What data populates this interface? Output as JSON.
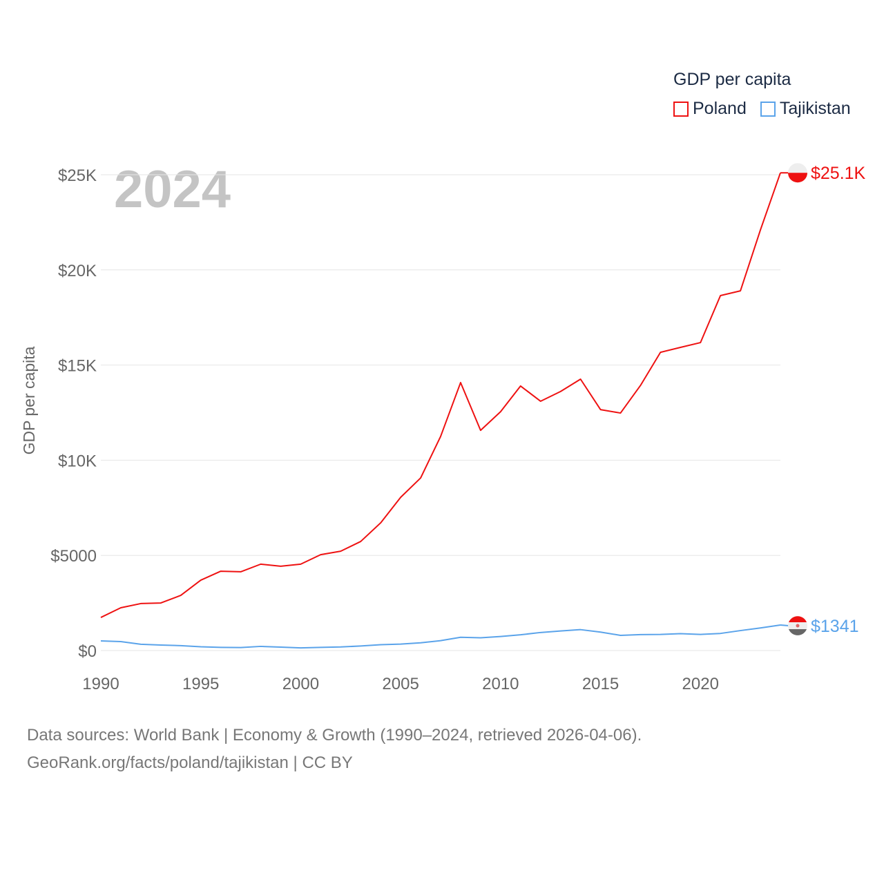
{
  "chart_data": {
    "type": "line",
    "title": "GDP per capita",
    "year_label": "2024",
    "xlabel": "",
    "ylabel": "GDP per capita",
    "xlim": [
      1990,
      2024
    ],
    "ylim": [
      0,
      25000
    ],
    "x_ticks": [
      1990,
      1995,
      2000,
      2005,
      2010,
      2015,
      2020
    ],
    "x_tick_labels": [
      "1990",
      "1995",
      "2000",
      "2005",
      "2010",
      "2015",
      "2020"
    ],
    "y_ticks": [
      0,
      5000,
      10000,
      15000,
      20000,
      25000
    ],
    "y_tick_labels": [
      "$0",
      "$5000",
      "$10K",
      "$15K",
      "$20K",
      "$25K"
    ],
    "grid": true,
    "legend_position": "top-right",
    "x": [
      1990,
      1991,
      1992,
      1993,
      1994,
      1995,
      1996,
      1997,
      1998,
      1999,
      2000,
      2001,
      2002,
      2003,
      2004,
      2005,
      2006,
      2007,
      2008,
      2009,
      2010,
      2011,
      2012,
      2013,
      2014,
      2015,
      2016,
      2017,
      2018,
      2019,
      2020,
      2021,
      2022,
      2023,
      2024
    ],
    "series": [
      {
        "name": "Poland",
        "color": "#ee1111",
        "end_label": "$25.1K",
        "values": [
          1740,
          2250,
          2470,
          2500,
          2900,
          3700,
          4170,
          4140,
          4540,
          4430,
          4540,
          5040,
          5220,
          5730,
          6710,
          8050,
          9070,
          11250,
          14080,
          11570,
          12550,
          13900,
          13100,
          13610,
          14260,
          12660,
          12480,
          13930,
          15670,
          15930,
          16180,
          18650,
          18900,
          22100,
          25100
        ]
      },
      {
        "name": "Tajikistan",
        "color": "#5aa3ea",
        "end_label": "$1341",
        "values": [
          510,
          470,
          330,
          290,
          260,
          200,
          170,
          160,
          220,
          180,
          140,
          170,
          190,
          240,
          310,
          340,
          410,
          520,
          700,
          670,
          740,
          830,
          950,
          1030,
          1100,
          970,
          800,
          840,
          850,
          890,
          850,
          900,
          1050,
          1190,
          1341
        ]
      }
    ]
  },
  "source_line_1": "Data sources: World Bank | Economy & Growth (1990–2024, retrieved 2026-04-06).",
  "source_line_2": "GeoRank.org/facts/poland/tajikistan | CC BY"
}
